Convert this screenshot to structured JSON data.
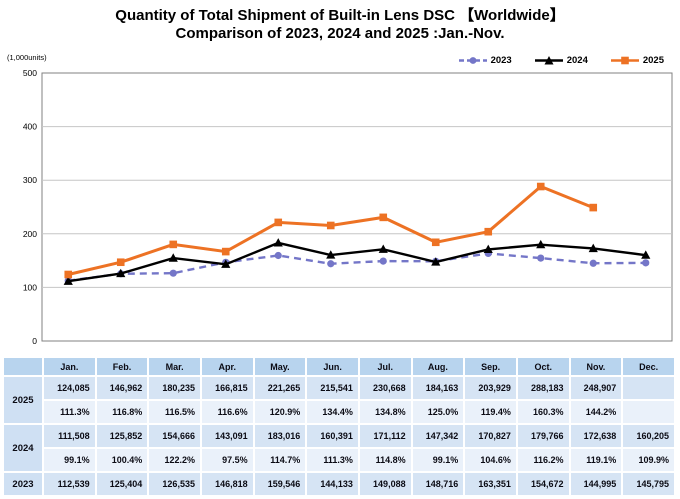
{
  "title": {
    "line1": "Quantity of Total Shipment of Built-in Lens DSC 【Worldwide】",
    "line2": "Comparison of 2023, 2024 and 2025 :Jan.-Nov."
  },
  "chart": {
    "units_label": "(1,000units)"
  },
  "chart_data": {
    "type": "line",
    "title": "Quantity of Total Shipment of Built-in Lens DSC [Worldwide] Comparison of 2023, 2024 and 2025 :Jan.-Nov.",
    "categories": [
      "Jan.",
      "Feb.",
      "Mar.",
      "Apr.",
      "May.",
      "Jun.",
      "Jul.",
      "Aug.",
      "Sep.",
      "Oct.",
      "Nov.",
      "Dec."
    ],
    "xlabel": "",
    "ylabel": "(1,000units)",
    "ylim": [
      0,
      500000
    ],
    "y_ticks": [
      0,
      100000,
      200000,
      300000,
      400000,
      500000
    ],
    "y_tick_labels": [
      "0",
      "100",
      "200",
      "300",
      "400",
      "500"
    ],
    "grid": true,
    "legend_position": "top-right",
    "series": [
      {
        "name": "2023",
        "color": "#7476c8",
        "style": "dashed",
        "marker": "circle",
        "values": [
          112539,
          125404,
          126535,
          146818,
          159546,
          144133,
          149088,
          148716,
          163351,
          154672,
          144995,
          145795
        ]
      },
      {
        "name": "2024",
        "color": "#000000",
        "style": "solid",
        "marker": "triangle",
        "values": [
          111508,
          125852,
          154666,
          143091,
          183016,
          160391,
          171112,
          147342,
          170827,
          179766,
          172638,
          160205
        ]
      },
      {
        "name": "2025",
        "color": "#ed7224",
        "style": "solid",
        "marker": "square",
        "values": [
          124085,
          146962,
          180235,
          166815,
          221265,
          215541,
          230668,
          184163,
          203929,
          288183,
          248907
        ]
      }
    ]
  },
  "table": {
    "col_header": [
      "",
      "Jan.",
      "Feb.",
      "Mar.",
      "Apr.",
      "May.",
      "Jun.",
      "Jul.",
      "Aug.",
      "Sep.",
      "Oct.",
      "Nov.",
      "Dec."
    ],
    "rows": [
      {
        "year": "2025",
        "type": "vals",
        "cells": [
          "124,085",
          "146,962",
          "180,235",
          "166,815",
          "221,265",
          "215,541",
          "230,668",
          "184,163",
          "203,929",
          "288,183",
          "248,907",
          ""
        ]
      },
      {
        "year": "2025",
        "type": "pct",
        "cells": [
          "111.3%",
          "116.8%",
          "116.5%",
          "116.6%",
          "120.9%",
          "134.4%",
          "134.8%",
          "125.0%",
          "119.4%",
          "160.3%",
          "144.2%",
          ""
        ]
      },
      {
        "year": "2024",
        "type": "vals",
        "cells": [
          "111,508",
          "125,852",
          "154,666",
          "143,091",
          "183,016",
          "160,391",
          "171,112",
          "147,342",
          "170,827",
          "179,766",
          "172,638",
          "160,205"
        ]
      },
      {
        "year": "2024",
        "type": "pct",
        "cells": [
          "99.1%",
          "100.4%",
          "122.2%",
          "97.5%",
          "114.7%",
          "111.3%",
          "114.8%",
          "99.1%",
          "104.6%",
          "116.2%",
          "119.1%",
          "109.9%"
        ]
      },
      {
        "year": "2023",
        "type": "vals",
        "cells": [
          "112,539",
          "125,404",
          "126,535",
          "146,818",
          "159,546",
          "144,133",
          "149,088",
          "148,716",
          "163,351",
          "154,672",
          "144,995",
          "145,795"
        ]
      }
    ]
  },
  "colors": {
    "series_2023": "#7476c8",
    "series_2024": "#000000",
    "series_2025": "#ed7224",
    "grid": "#c6c6c6",
    "frame": "#808080",
    "table_header_bg": "#b8d4ee",
    "table_values_bg": "#d6e4f4",
    "table_pct_bg": "#eaf1fa",
    "table_year_bg": "#cfe0f3"
  }
}
